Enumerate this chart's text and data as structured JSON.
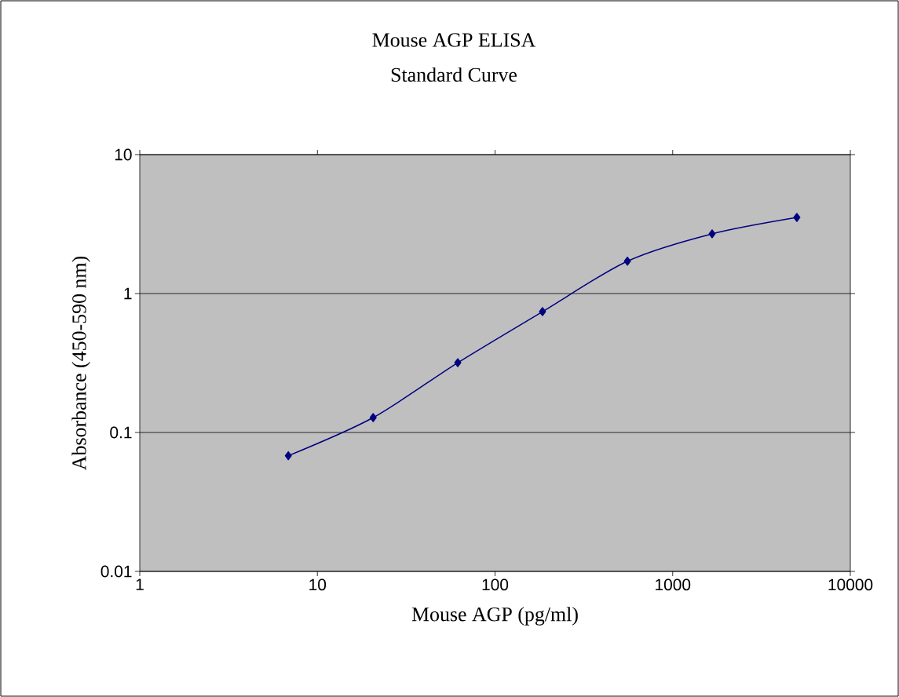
{
  "chart_data": {
    "type": "line",
    "title": "Mouse AGP ELISA",
    "subtitle": "Standard Curve",
    "xlabel": "Mouse AGP (pg/ml)",
    "ylabel": "Absorbance (450-590 nm)",
    "x": [
      6.86,
      20.6,
      61.7,
      185,
      556,
      1667,
      5000
    ],
    "series": [
      {
        "color": "#000080",
        "values": [
          0.068,
          0.128,
          0.318,
          0.741,
          1.71,
          2.69,
          3.53
        ]
      }
    ],
    "log": "xy",
    "xlim": [
      1,
      10000
    ],
    "ylim": [
      0.01,
      10
    ],
    "xticks": [
      1,
      10,
      100,
      1000,
      10000
    ],
    "yticks": [
      0.01,
      0.1,
      1,
      10
    ],
    "grid": "y",
    "marker": "diamond",
    "line_style": "solid"
  }
}
